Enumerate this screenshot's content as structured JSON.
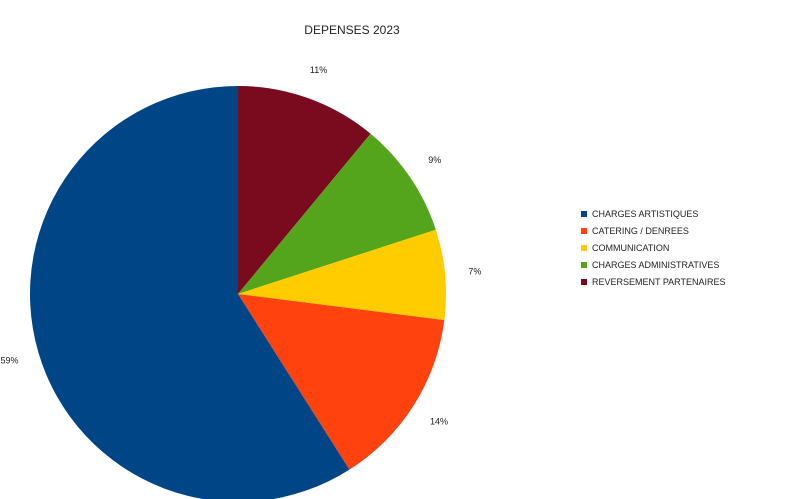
{
  "chart_data": {
    "type": "pie",
    "title": "DEPENSES 2023",
    "start": "top",
    "direction": "clockwise",
    "legend_position": "right",
    "slices": [
      {
        "label": "REVERSEMENT PARTENAIRES",
        "value": 11,
        "display": "11%",
        "color": "#7a0a1e"
      },
      {
        "label": "CHARGES ADMINISTRATIVES",
        "value": 9,
        "display": "9%",
        "color": "#55a51c"
      },
      {
        "label": "COMMUNICATION",
        "value": 7,
        "display": "7%",
        "color": "#ffcc00"
      },
      {
        "label": "CATERING / DENREES",
        "value": 14,
        "display": "14%",
        "color": "#ff420e"
      },
      {
        "label": "CHARGES ARTISTIQUES",
        "value": 59,
        "display": "59%",
        "color": "#004586"
      }
    ],
    "legend": [
      {
        "label": "CHARGES ARTISTIQUES",
        "color": "#004586"
      },
      {
        "label": "CATERING / DENREES",
        "color": "#ff420e"
      },
      {
        "label": "COMMUNICATION",
        "color": "#ffcc00"
      },
      {
        "label": "CHARGES ADMINISTRATIVES",
        "color": "#55a51c"
      },
      {
        "label": "REVERSEMENT PARTENAIRES",
        "color": "#7a0a1e"
      }
    ]
  }
}
